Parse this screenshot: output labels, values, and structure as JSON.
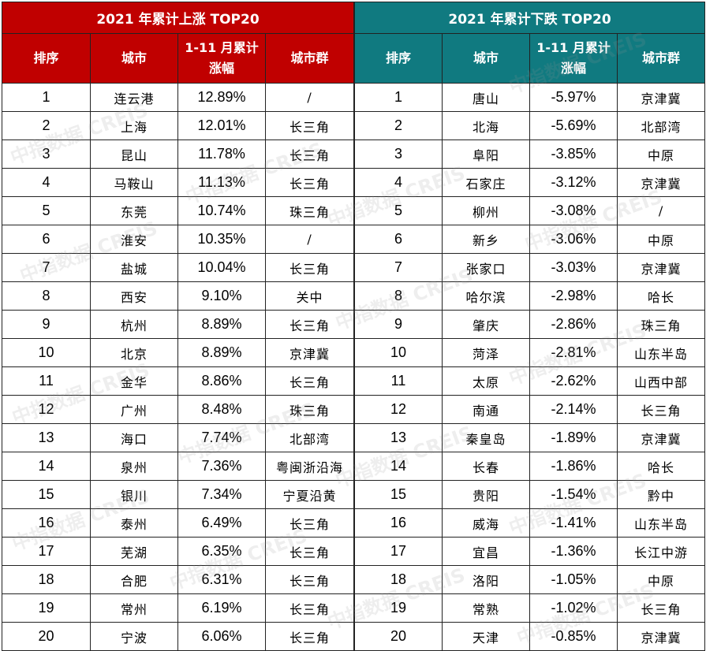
{
  "left": {
    "title": "2021 年累计上涨 TOP20",
    "headers": [
      "排序",
      "城市",
      "1-11 月累计",
      "涨幅",
      "城市群"
    ],
    "rows": [
      {
        "rank": "1",
        "city": "连云港",
        "change": "12.89%",
        "group": "/"
      },
      {
        "rank": "2",
        "city": "上海",
        "change": "12.01%",
        "group": "长三角"
      },
      {
        "rank": "3",
        "city": "昆山",
        "change": "11.78%",
        "group": "长三角"
      },
      {
        "rank": "4",
        "city": "马鞍山",
        "change": "11.13%",
        "group": "长三角"
      },
      {
        "rank": "5",
        "city": "东莞",
        "change": "10.74%",
        "group": "珠三角"
      },
      {
        "rank": "6",
        "city": "淮安",
        "change": "10.35%",
        "group": "/"
      },
      {
        "rank": "7",
        "city": "盐城",
        "change": "10.04%",
        "group": "长三角"
      },
      {
        "rank": "8",
        "city": "西安",
        "change": "9.10%",
        "group": "关中"
      },
      {
        "rank": "9",
        "city": "杭州",
        "change": "8.89%",
        "group": "长三角"
      },
      {
        "rank": "10",
        "city": "北京",
        "change": "8.89%",
        "group": "京津冀"
      },
      {
        "rank": "11",
        "city": "金华",
        "change": "8.86%",
        "group": "长三角"
      },
      {
        "rank": "12",
        "city": "广州",
        "change": "8.48%",
        "group": "珠三角"
      },
      {
        "rank": "13",
        "city": "海口",
        "change": "7.74%",
        "group": "北部湾"
      },
      {
        "rank": "14",
        "city": "泉州",
        "change": "7.36%",
        "group": "粤闽浙沿海"
      },
      {
        "rank": "15",
        "city": "银川",
        "change": "7.34%",
        "group": "宁夏沿黄"
      },
      {
        "rank": "16",
        "city": "泰州",
        "change": "6.49%",
        "group": "长三角"
      },
      {
        "rank": "17",
        "city": "芜湖",
        "change": "6.35%",
        "group": "长三角"
      },
      {
        "rank": "18",
        "city": "合肥",
        "change": "6.31%",
        "group": "长三角"
      },
      {
        "rank": "19",
        "city": "常州",
        "change": "6.19%",
        "group": "长三角"
      },
      {
        "rank": "20",
        "city": "宁波",
        "change": "6.06%",
        "group": "长三角"
      }
    ]
  },
  "right": {
    "title": "2021 年累计下跌 TOP20",
    "headers": [
      "排序",
      "城市",
      "1-11 月累计",
      "涨幅",
      "城市群"
    ],
    "rows": [
      {
        "rank": "1",
        "city": "唐山",
        "change": "-5.97%",
        "group": "京津冀"
      },
      {
        "rank": "2",
        "city": "北海",
        "change": "-5.69%",
        "group": "北部湾"
      },
      {
        "rank": "3",
        "city": "阜阳",
        "change": "-3.85%",
        "group": "中原"
      },
      {
        "rank": "4",
        "city": "石家庄",
        "change": "-3.12%",
        "group": "京津冀"
      },
      {
        "rank": "5",
        "city": "柳州",
        "change": "-3.08%",
        "group": "/"
      },
      {
        "rank": "6",
        "city": "新乡",
        "change": "-3.06%",
        "group": "中原"
      },
      {
        "rank": "7",
        "city": "张家口",
        "change": "-3.03%",
        "group": "京津冀"
      },
      {
        "rank": "8",
        "city": "哈尔滨",
        "change": "-2.98%",
        "group": "哈长"
      },
      {
        "rank": "9",
        "city": "肇庆",
        "change": "-2.86%",
        "group": "珠三角"
      },
      {
        "rank": "10",
        "city": "菏泽",
        "change": "-2.81%",
        "group": "山东半岛"
      },
      {
        "rank": "11",
        "city": "太原",
        "change": "-2.62%",
        "group": "山西中部"
      },
      {
        "rank": "12",
        "city": "南通",
        "change": "-2.14%",
        "group": "长三角"
      },
      {
        "rank": "13",
        "city": "秦皇岛",
        "change": "-1.89%",
        "group": "京津冀"
      },
      {
        "rank": "14",
        "city": "长春",
        "change": "-1.86%",
        "group": "哈长"
      },
      {
        "rank": "15",
        "city": "贵阳",
        "change": "-1.54%",
        "group": "黔中"
      },
      {
        "rank": "16",
        "city": "威海",
        "change": "-1.41%",
        "group": "山东半岛"
      },
      {
        "rank": "17",
        "city": "宜昌",
        "change": "-1.36%",
        "group": "长江中游"
      },
      {
        "rank": "18",
        "city": "洛阳",
        "change": "-1.05%",
        "group": "中原"
      },
      {
        "rank": "19",
        "city": "常熟",
        "change": "-1.02%",
        "group": "长三角"
      },
      {
        "rank": "20",
        "city": "天津",
        "change": "-0.85%",
        "group": "京津冀"
      }
    ]
  },
  "watermark": "中指数据 CREIS",
  "colors": {
    "rise_header": "#c00000",
    "fall_header": "#107a80"
  }
}
